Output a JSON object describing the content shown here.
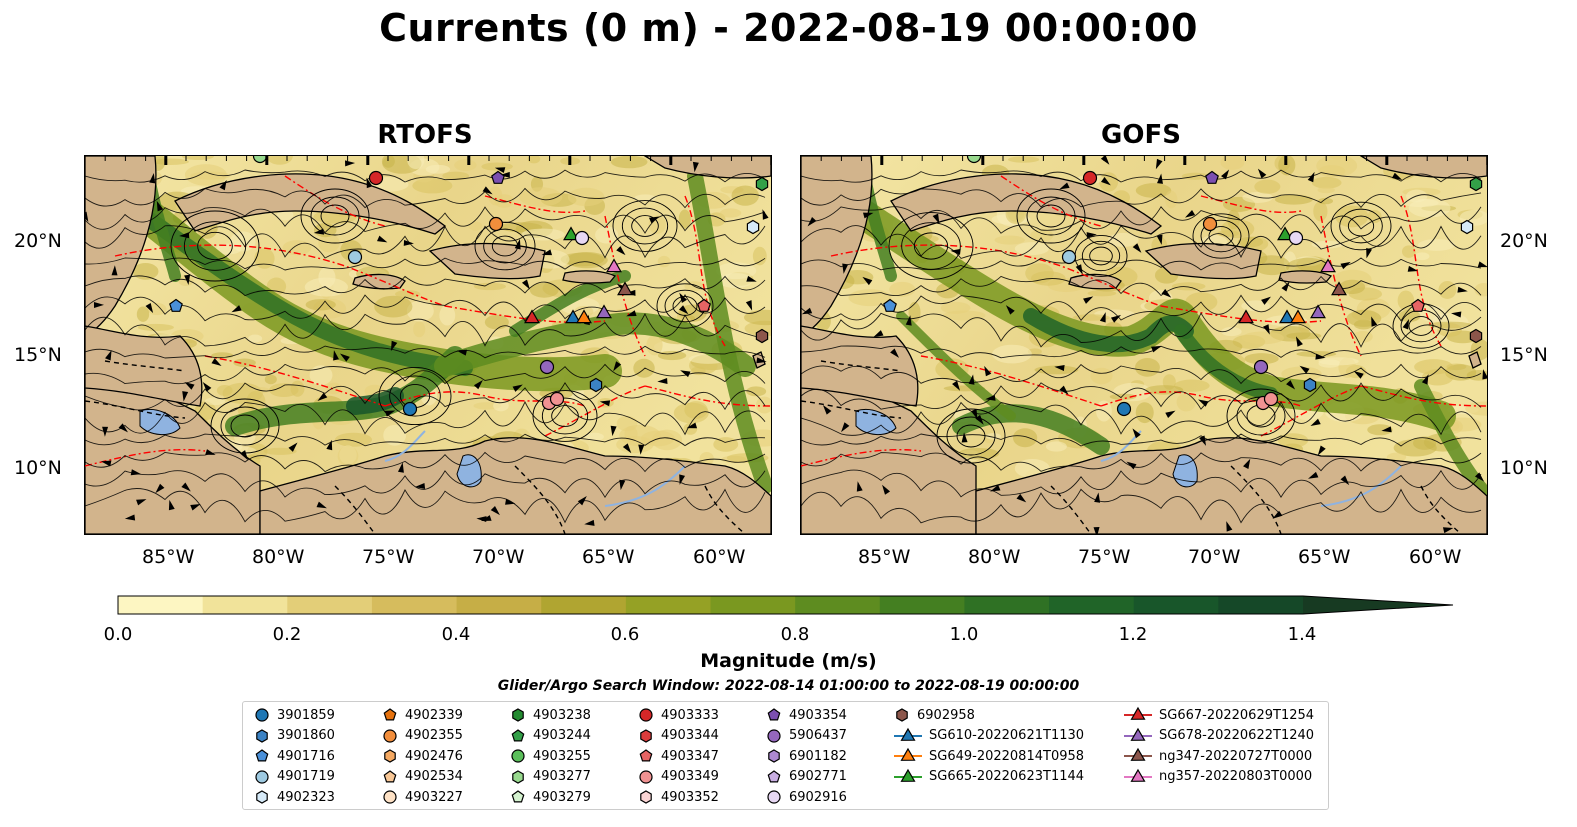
{
  "title": "Currents (0 m) - 2022-08-19 00:00:00",
  "panels": [
    {
      "name": "RTOFS"
    },
    {
      "name": "GOFS"
    }
  ],
  "axes": {
    "lat_labels": [
      "20°N",
      "15°N",
      "10°N"
    ],
    "lon_labels": [
      "85°W",
      "80°W",
      "75°W",
      "70°W",
      "65°W",
      "60°W"
    ]
  },
  "colorbar": {
    "title": "Magnitude (m/s)",
    "tick_labels": [
      "0.0",
      "0.2",
      "0.4",
      "0.6",
      "0.8",
      "1.0",
      "1.2",
      "1.4"
    ],
    "range": [
      0.0,
      1.5
    ],
    "extend": "max",
    "colors": [
      "#fdf6c2",
      "#f1e39a",
      "#e3ce78",
      "#d6bc5d",
      "#c6ae46",
      "#b0a531",
      "#95a125",
      "#7a9820",
      "#5e8c20",
      "#447f21",
      "#2f7124",
      "#206428",
      "#18562a",
      "#154828",
      "#173a22"
    ]
  },
  "search_window": "Glider/Argo Search Window: 2022-08-14 01:00:00 to 2022-08-19 00:00:00",
  "legend": {
    "columns": [
      [
        {
          "label": "3901859",
          "marker": "circle",
          "color": "#1f77b4"
        },
        {
          "label": "3901860",
          "marker": "hexagon",
          "color": "#3b82c4"
        },
        {
          "label": "4901716",
          "marker": "pentagon",
          "color": "#4a90d9"
        },
        {
          "label": "4901719",
          "marker": "circle",
          "color": "#9ecae1"
        },
        {
          "label": "4902323",
          "marker": "hexagon",
          "color": "#d6eaf8"
        }
      ],
      [
        {
          "label": "4902339",
          "marker": "pentagon",
          "color": "#e6720e"
        },
        {
          "label": "4902355",
          "marker": "circle",
          "color": "#f28e3c"
        },
        {
          "label": "4902476",
          "marker": "hexagon",
          "color": "#f5a962"
        },
        {
          "label": "4902534",
          "marker": "pentagon",
          "color": "#f8c796"
        },
        {
          "label": "4903227",
          "marker": "circle",
          "color": "#fde1c5"
        }
      ],
      [
        {
          "label": "4903238",
          "marker": "hexagon",
          "color": "#238b30"
        },
        {
          "label": "4903244",
          "marker": "pentagon",
          "color": "#33a048"
        },
        {
          "label": "4903255",
          "marker": "circle",
          "color": "#5bbf5b"
        },
        {
          "label": "4903277",
          "marker": "hexagon",
          "color": "#98d98e"
        },
        {
          "label": "4903279",
          "marker": "pentagon",
          "color": "#d4f2cf"
        }
      ],
      [
        {
          "label": "4903333",
          "marker": "circle",
          "color": "#d62728"
        },
        {
          "label": "4903344",
          "marker": "hexagon",
          "color": "#dc3c3c"
        },
        {
          "label": "4903347",
          "marker": "pentagon",
          "color": "#e66464"
        },
        {
          "label": "4903349",
          "marker": "circle",
          "color": "#f09292"
        },
        {
          "label": "4903352",
          "marker": "hexagon",
          "color": "#fbd5d5"
        }
      ],
      [
        {
          "label": "4903354",
          "marker": "pentagon",
          "color": "#7b4fb0"
        },
        {
          "label": "5906437",
          "marker": "circle",
          "color": "#9467bd"
        },
        {
          "label": "6901182",
          "marker": "hexagon",
          "color": "#ad89d0"
        },
        {
          "label": "6902771",
          "marker": "pentagon",
          "color": "#c9aee2"
        },
        {
          "label": "6902916",
          "marker": "circle",
          "color": "#e7d8f3"
        }
      ],
      [
        {
          "label": "6902958",
          "marker": "hexagon",
          "color": "#8c564b"
        },
        {
          "label": "SG610-20220621T1130",
          "marker": "triangle-line",
          "color": "#1f77b4"
        },
        {
          "label": "SG649-20220814T0958",
          "marker": "triangle-line",
          "color": "#ff7f0e"
        },
        {
          "label": "SG665-20220623T1144",
          "marker": "triangle-line",
          "color": "#2ca02c"
        }
      ],
      [
        {
          "label": "SG667-20220629T1254",
          "marker": "triangle-line",
          "color": "#d62728"
        },
        {
          "label": "SG678-20220622T1240",
          "marker": "triangle-line",
          "color": "#9467bd"
        },
        {
          "label": "ng347-20220727T0000",
          "marker": "triangle-line",
          "color": "#8c564b"
        },
        {
          "label": "ng357-20220803T0000",
          "marker": "triangle-line",
          "color": "#e377c2"
        }
      ]
    ]
  },
  "map_colors": {
    "land": "#d2b48c",
    "lake": "#8fb3e0",
    "eez_line": "#ff0000",
    "border_line": "#000000"
  }
}
